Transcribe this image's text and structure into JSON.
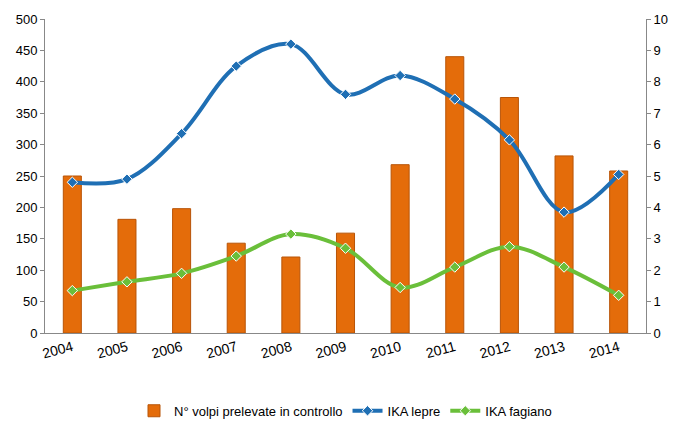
{
  "chart_data": {
    "type": "bar",
    "categories": [
      "2004",
      "2005",
      "2006",
      "2007",
      "2008",
      "2009",
      "2010",
      "2011",
      "2012",
      "2013",
      "2014"
    ],
    "series": [
      {
        "name": "N° volpi prelevate in controllo",
        "type": "bar",
        "color": "#e46c0a",
        "values": [
          250,
          181,
          198,
          143,
          121,
          159,
          268,
          440,
          375,
          282,
          258
        ]
      },
      {
        "name": "IKA lepre",
        "type": "line",
        "axis": "y2",
        "color": "#1f6fb4",
        "marker": "diamond",
        "line_style": "spline",
        "values": [
          4.8,
          4.9,
          6.35,
          8.5,
          9.2,
          7.6,
          8.2,
          7.45,
          6.15,
          3.85,
          5.05
        ]
      },
      {
        "name": "IKA fagiano",
        "type": "line",
        "axis": "y2",
        "color": "#6abf3a",
        "marker": "diamond",
        "line_style": "spline",
        "values": [
          1.35,
          1.63,
          1.9,
          2.45,
          3.15,
          2.7,
          1.45,
          2.1,
          2.75,
          2.1,
          1.2
        ]
      }
    ],
    "ylim": [
      0,
      500
    ],
    "yticks": [
      0,
      50,
      100,
      150,
      200,
      250,
      300,
      350,
      400,
      450,
      500
    ],
    "y2lim": [
      0,
      10
    ],
    "y2ticks": [
      0,
      1,
      2,
      3,
      4,
      5,
      6,
      7,
      8,
      9,
      10
    ],
    "grid": false,
    "legend": "bottom"
  }
}
